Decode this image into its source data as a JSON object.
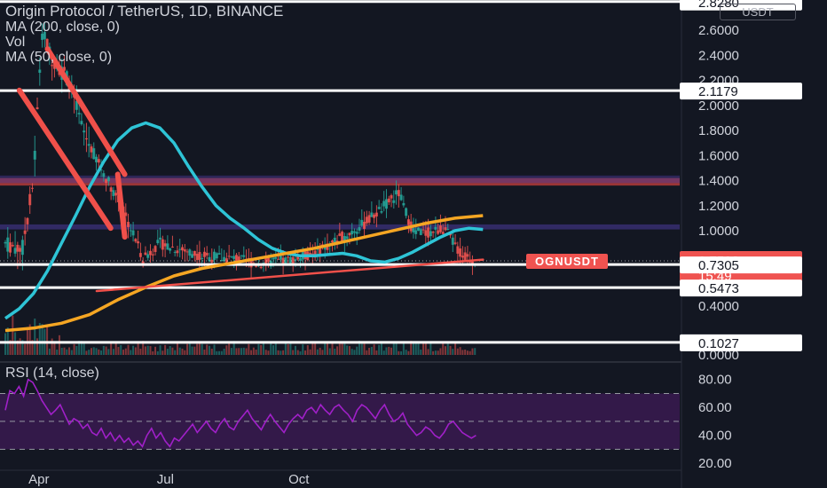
{
  "header": {
    "title": "Origin Protocol / TetherUS, 1D, BINANCE",
    "ind_ma200": "MA (200, close, 0)",
    "ind_vol": "Vol",
    "ind_ma50": "MA (50, close, 0)",
    "rsi_label": "RSI (14, close)"
  },
  "currency": "USDT",
  "symbol_tag": "OGNUSDT",
  "colors": {
    "background": "#131722",
    "up_candle": "#26a69a",
    "down_candle": "#ef5350",
    "ma50": "#2ec4d6",
    "ma200": "#f5a623",
    "trendline": "#f0504a",
    "rsi_line": "#a020c8",
    "rsi_band": "#3f1b57",
    "resistance_zone": "#c8403c",
    "purple_zone": "#4b3a9a"
  },
  "chart_data": [
    {
      "type": "candlestick",
      "title": "Origin Protocol / TetherUS, 1D, BINANCE",
      "x_ticks": [
        "Apr",
        "Jul",
        "Oct"
      ],
      "y_ticks": [
        "2.6000",
        "2.4000",
        "2.2000",
        "2.0000",
        "1.8000",
        "1.6000",
        "1.4000",
        "1.2000",
        "1.0000",
        "0.4000",
        "0.0000"
      ],
      "ylim": [
        0,
        2.88
      ],
      "price_labels": [
        {
          "value": "2.8280",
          "style": "white"
        },
        {
          "value": "2.1179",
          "style": "white"
        },
        {
          "value": "0.7598",
          "style": "red",
          "sub": "15:49"
        },
        {
          "value": "0.7305",
          "style": "white"
        },
        {
          "value": "0.5473",
          "style": "white"
        },
        {
          "value": "0.1027",
          "style": "white"
        }
      ],
      "horizontal_levels": [
        2.828,
        2.1179,
        0.7305,
        0.5473,
        0.1027
      ],
      "zones": [
        {
          "name": "resistance",
          "from": 1.36,
          "to": 1.42
        },
        {
          "name": "support-band",
          "from": 1.01,
          "to": 1.05
        }
      ],
      "last_price": 0.7598,
      "series": [
        {
          "name": "MA (50, close, 0)",
          "points": [
            [
              0,
              0.3
            ],
            [
              10,
              0.38
            ],
            [
              20,
              0.5
            ],
            [
              30,
              0.68
            ],
            [
              40,
              0.9
            ],
            [
              50,
              1.12
            ],
            [
              60,
              1.35
            ],
            [
              70,
              1.55
            ],
            [
              80,
              1.72
            ],
            [
              90,
              1.82
            ],
            [
              100,
              1.86
            ],
            [
              110,
              1.82
            ],
            [
              120,
              1.7
            ],
            [
              130,
              1.52
            ],
            [
              140,
              1.35
            ],
            [
              150,
              1.2
            ],
            [
              160,
              1.1
            ],
            [
              170,
              1.02
            ],
            [
              180,
              0.93
            ],
            [
              190,
              0.86
            ],
            [
              200,
              0.82
            ],
            [
              210,
              0.8
            ],
            [
              220,
              0.8
            ],
            [
              230,
              0.81
            ],
            [
              240,
              0.82
            ],
            [
              250,
              0.8
            ],
            [
              260,
              0.76
            ],
            [
              270,
              0.75
            ],
            [
              280,
              0.78
            ],
            [
              290,
              0.83
            ],
            [
              300,
              0.89
            ],
            [
              310,
              0.95
            ],
            [
              320,
              1.0
            ],
            [
              330,
              1.02
            ],
            [
              340,
              1.01
            ]
          ]
        },
        {
          "name": "MA (200, close, 0)",
          "points": [
            [
              0,
              0.2
            ],
            [
              20,
              0.22
            ],
            [
              40,
              0.26
            ],
            [
              60,
              0.33
            ],
            [
              80,
              0.45
            ],
            [
              100,
              0.55
            ],
            [
              120,
              0.64
            ],
            [
              140,
              0.7
            ],
            [
              160,
              0.74
            ],
            [
              180,
              0.78
            ],
            [
              200,
              0.82
            ],
            [
              220,
              0.86
            ],
            [
              240,
              0.91
            ],
            [
              260,
              0.96
            ],
            [
              280,
              1.01
            ],
            [
              300,
              1.06
            ],
            [
              320,
              1.1
            ],
            [
              340,
              1.12
            ]
          ]
        }
      ],
      "trendlines": [
        [
          [
            30,
            2.45
          ],
          [
            85,
            1.45
          ]
        ],
        [
          [
            10,
            2.12
          ],
          [
            75,
            1.02
          ]
        ],
        [
          [
            80,
            1.45
          ],
          [
            85,
            0.95
          ]
        ],
        [
          [
            65,
            0.52
          ],
          [
            340,
            0.77
          ]
        ]
      ]
    },
    {
      "type": "line",
      "title": "RSI (14, close)",
      "y_ticks": [
        "80.00",
        "60.00",
        "40.00",
        "20.00"
      ],
      "ylim": [
        15,
        90
      ],
      "bands": [
        30,
        50,
        70
      ],
      "series": [
        {
          "name": "RSI",
          "values": [
            58,
            72,
            70,
            75,
            68,
            80,
            78,
            72,
            65,
            60,
            55,
            58,
            62,
            55,
            48,
            52,
            50,
            45,
            48,
            42,
            40,
            45,
            38,
            42,
            36,
            40,
            35,
            38,
            33,
            36,
            32,
            40,
            45,
            38,
            42,
            36,
            32,
            38,
            36,
            40,
            44,
            48,
            42,
            46,
            50,
            45,
            42,
            48,
            52,
            46,
            44,
            50,
            54,
            58,
            52,
            48,
            44,
            50,
            55,
            50,
            46,
            42,
            48,
            52,
            55,
            52,
            58,
            60,
            56,
            62,
            58,
            55,
            60,
            62,
            58,
            55,
            50,
            58,
            62,
            60,
            56,
            52,
            58,
            62,
            55,
            50,
            52,
            56,
            48,
            44,
            40,
            42,
            46,
            44,
            40,
            38,
            42,
            48,
            50,
            46,
            42,
            40,
            38,
            40
          ]
        }
      ]
    }
  ]
}
